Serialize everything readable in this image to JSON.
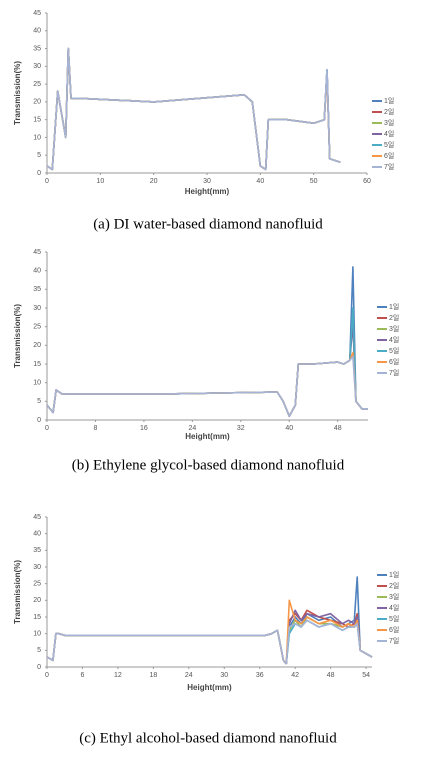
{
  "chart_data": [
    {
      "type": "line",
      "xlabel": "Height(mm)",
      "ylabel": "Transmission(%)",
      "caption": "(a)  DI  water-based  diamond  nanofluid",
      "xlim": [
        0,
        60
      ],
      "xticks": [
        0,
        10,
        20,
        30,
        40,
        50,
        60
      ],
      "ylim": [
        0,
        45
      ],
      "yticks": [
        0,
        5,
        10,
        15,
        20,
        25,
        30,
        35,
        40,
        45
      ],
      "x": [
        0,
        1,
        2,
        3.5,
        4,
        4.5,
        6,
        20,
        37,
        38.5,
        40,
        41,
        41.5,
        45,
        50,
        52,
        52.5,
        53,
        55
      ],
      "series": [
        {
          "name": "1일",
          "color": "#4f81bd",
          "values": [
            2,
            1,
            23,
            10,
            35,
            21,
            21,
            20,
            22,
            20,
            2,
            1,
            15,
            15,
            14,
            15,
            29,
            4,
            3
          ]
        },
        {
          "name": "2일",
          "color": "#c0504d",
          "values": [
            2,
            1,
            23,
            10,
            35,
            21,
            21,
            20,
            22,
            20,
            2,
            1,
            15,
            15,
            14,
            15,
            28,
            4,
            3
          ]
        },
        {
          "name": "3일",
          "color": "#9bbb59",
          "values": [
            2,
            1,
            23,
            10,
            35,
            21,
            21,
            20,
            22,
            20,
            2,
            1,
            15,
            15,
            14,
            15,
            28,
            4,
            3
          ]
        },
        {
          "name": "4일",
          "color": "#8064a2",
          "values": [
            2,
            1,
            23,
            10,
            35,
            21,
            21,
            20,
            22,
            20,
            2,
            1,
            15,
            15,
            14,
            15,
            29,
            4,
            3
          ]
        },
        {
          "name": "5일",
          "color": "#4bacc6",
          "values": [
            2,
            1,
            23,
            10,
            35,
            21,
            21,
            20,
            22,
            20,
            2,
            1,
            15,
            15,
            14,
            15,
            29,
            4,
            3
          ]
        },
        {
          "name": "6일",
          "color": "#f79646",
          "values": [
            2,
            1,
            23,
            10,
            35,
            21,
            21,
            20,
            22,
            20,
            2,
            1,
            15,
            15,
            14,
            15,
            28,
            4,
            3
          ]
        },
        {
          "name": "7일",
          "color": "#a5b4d6",
          "values": [
            2,
            1,
            23,
            10,
            35,
            21,
            21,
            20,
            22,
            20,
            2,
            1,
            15,
            15,
            14,
            15,
            29,
            4,
            3
          ]
        }
      ]
    },
    {
      "type": "line",
      "xlabel": "Height(mm)",
      "ylabel": "Transmission(%)",
      "caption": "(b)  Ethylene  glycol-based  diamond  nanofluid",
      "xlim": [
        0,
        53
      ],
      "xticks": [
        0,
        8,
        16,
        24,
        32,
        40,
        48
      ],
      "ylim": [
        0,
        45
      ],
      "yticks": [
        0,
        5,
        10,
        15,
        20,
        25,
        30,
        35,
        40,
        45
      ],
      "x": [
        0,
        1,
        1.5,
        2.5,
        4,
        20,
        38,
        39,
        40,
        41,
        41.5,
        44,
        48,
        49,
        50,
        50.5,
        51,
        52,
        53
      ],
      "series": [
        {
          "name": "1일",
          "color": "#4f81bd",
          "values": [
            4,
            2,
            8,
            7,
            7,
            7,
            7.5,
            5,
            1,
            4,
            15,
            15,
            15.5,
            15,
            16,
            41,
            5,
            3,
            3
          ]
        },
        {
          "name": "2일",
          "color": "#c0504d",
          "values": [
            4,
            2,
            8,
            7,
            7,
            7,
            7.5,
            5,
            1,
            4,
            15,
            15,
            15.5,
            15,
            16,
            29,
            5,
            3,
            3
          ]
        },
        {
          "name": "3일",
          "color": "#9bbb59",
          "values": [
            4,
            2,
            8,
            7,
            7,
            7,
            7.5,
            5,
            1,
            4,
            15,
            15,
            15.5,
            15,
            16,
            27,
            5,
            3,
            3
          ]
        },
        {
          "name": "4일",
          "color": "#8064a2",
          "values": [
            4,
            2,
            8,
            7,
            7,
            7,
            7.5,
            5,
            1,
            4,
            15,
            15,
            15.5,
            15,
            16,
            26,
            5,
            3,
            3
          ]
        },
        {
          "name": "5일",
          "color": "#4bacc6",
          "values": [
            4,
            2,
            8,
            7,
            7,
            7,
            7.5,
            5,
            1,
            4,
            15,
            15,
            15.5,
            15,
            16,
            30,
            5,
            3,
            3
          ]
        },
        {
          "name": "6일",
          "color": "#f79646",
          "values": [
            4,
            2,
            8,
            7,
            7,
            7,
            7.5,
            5,
            1,
            4,
            15,
            15,
            15.5,
            15,
            16,
            18,
            5,
            3,
            3
          ]
        },
        {
          "name": "7일",
          "color": "#a5b4d6",
          "values": [
            4,
            2,
            8,
            7,
            7,
            7,
            7.5,
            5,
            1,
            4,
            15,
            15,
            15.5,
            15,
            16,
            17,
            5,
            3,
            3
          ]
        }
      ]
    },
    {
      "type": "line",
      "xlabel": "Height(mm)",
      "ylabel": "Transmission(%)",
      "caption": "(c)  Ethyl  alcohol-based  diamond  nanofluid",
      "xlim": [
        0,
        55
      ],
      "xticks": [
        0,
        6,
        12,
        18,
        24,
        30,
        36,
        42,
        48,
        54
      ],
      "ylim": [
        0,
        45
      ],
      "yticks": [
        0,
        5,
        10,
        15,
        20,
        25,
        30,
        35,
        40,
        45
      ],
      "x": [
        0,
        1,
        1.5,
        2,
        3,
        20,
        37,
        38,
        39,
        40,
        40.5,
        41,
        42,
        43,
        44,
        46,
        48,
        50,
        51,
        52,
        52.5,
        53,
        55
      ],
      "series": [
        {
          "name": "1일",
          "color": "#4f81bd",
          "values": [
            3,
            2,
            10,
            10,
            9.5,
            9.5,
            9.5,
            10,
            11,
            2,
            1,
            12,
            15,
            13,
            16,
            14,
            15,
            12,
            13,
            14,
            27,
            5,
            3
          ]
        },
        {
          "name": "2일",
          "color": "#c0504d",
          "values": [
            3,
            2,
            10,
            10,
            9.5,
            9.5,
            9.5,
            10,
            11,
            2,
            1,
            14,
            16,
            14,
            17,
            15,
            14,
            13,
            12,
            13,
            16,
            5,
            3
          ]
        },
        {
          "name": "3일",
          "color": "#9bbb59",
          "values": [
            3,
            2,
            10,
            10,
            9.5,
            9.5,
            9.5,
            10,
            11,
            2,
            1,
            11,
            14,
            12,
            15,
            13,
            13,
            12,
            13,
            12,
            14,
            5,
            3
          ]
        },
        {
          "name": "4일",
          "color": "#8064a2",
          "values": [
            3,
            2,
            10,
            10,
            9.5,
            9.5,
            9.5,
            10,
            11,
            2,
            1,
            13,
            17,
            14,
            16,
            15,
            16,
            13,
            14,
            13,
            15,
            5,
            3
          ]
        },
        {
          "name": "5일",
          "color": "#4bacc6",
          "values": [
            3,
            2,
            10,
            10,
            9.5,
            9.5,
            9.5,
            10,
            11,
            2,
            1,
            10,
            13,
            12,
            14,
            12,
            13,
            11,
            12,
            12,
            13,
            5,
            3
          ]
        },
        {
          "name": "6일",
          "color": "#f79646",
          "values": [
            3,
            2,
            10,
            10,
            9.5,
            9.5,
            9.5,
            10,
            11,
            2,
            1,
            20,
            14,
            13,
            15,
            13,
            14,
            12,
            13,
            12,
            14,
            5,
            3
          ]
        },
        {
          "name": "7일",
          "color": "#a5b4d6",
          "values": [
            3,
            2,
            10,
            10,
            9.5,
            9.5,
            9.5,
            10,
            11,
            2,
            1,
            12,
            13,
            12,
            14,
            12,
            13,
            11,
            12,
            12,
            13,
            5,
            3
          ]
        }
      ]
    }
  ]
}
